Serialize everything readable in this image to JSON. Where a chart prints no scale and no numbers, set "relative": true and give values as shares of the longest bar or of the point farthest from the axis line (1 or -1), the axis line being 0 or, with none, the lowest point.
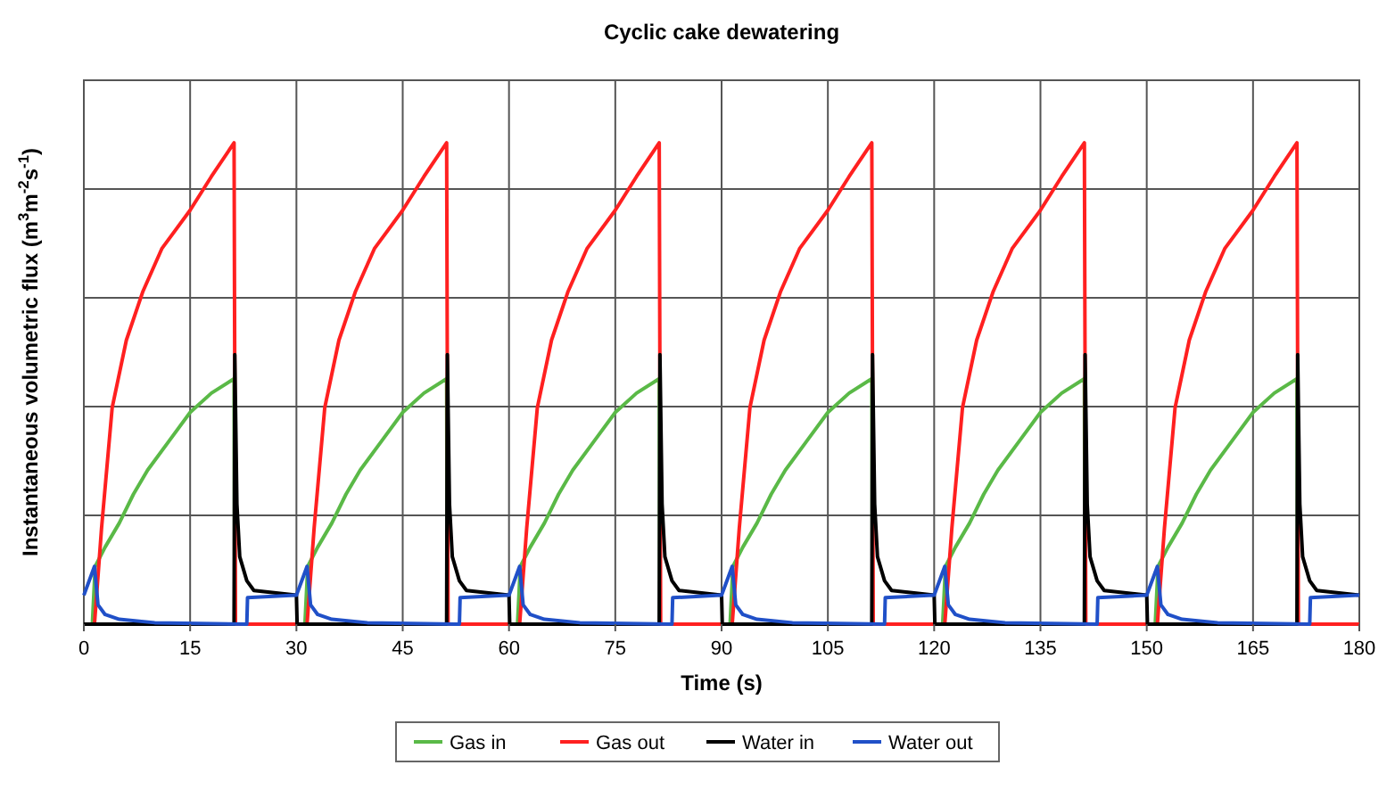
{
  "chart_data": {
    "type": "line",
    "title": "Cyclic cake dewatering",
    "xlabel": "Time (s)",
    "ylabel": "Instantaneous volumetric flux (m$^{3}$m$^{-2}$s$^{-1}$)",
    "relative": true,
    "xlim": [
      0,
      180
    ],
    "xticks": [
      0,
      15,
      30,
      45,
      60,
      75,
      90,
      105,
      120,
      135,
      150,
      165,
      180
    ],
    "grid": true,
    "legend": "bottom",
    "marker": "none",
    "line_style": "solid",
    "series": [
      {
        "name": "Gas in",
        "color": "#5ab947",
        "x": [
          0,
          1.2,
          1.6,
          3,
          5,
          7,
          9,
          12,
          15,
          18,
          21.2,
          21.3,
          31.2,
          31.6,
          33,
          35,
          37,
          39,
          42,
          45,
          48,
          51.2,
          51.3,
          61.2,
          61.6,
          63,
          65,
          67,
          69,
          72,
          75,
          78,
          81.2,
          81.3,
          91.2,
          91.6,
          93,
          95,
          97,
          99,
          102,
          105,
          108,
          111.2,
          111.3,
          121.2,
          121.6,
          123,
          125,
          127,
          129,
          132,
          135,
          138,
          141.2,
          141.3,
          151.2,
          151.6,
          153,
          155,
          157,
          159,
          162,
          165,
          168,
          171.2,
          171.3,
          180
        ],
        "values": [
          0,
          0,
          0.12,
          0.16,
          0.21,
          0.27,
          0.32,
          0.38,
          0.44,
          0.48,
          0.51,
          0,
          0,
          0.12,
          0.16,
          0.21,
          0.27,
          0.32,
          0.38,
          0.44,
          0.48,
          0.51,
          0,
          0,
          0.12,
          0.16,
          0.21,
          0.27,
          0.32,
          0.38,
          0.44,
          0.48,
          0.51,
          0,
          0,
          0.12,
          0.16,
          0.21,
          0.27,
          0.32,
          0.38,
          0.44,
          0.48,
          0.51,
          0,
          0,
          0.12,
          0.16,
          0.21,
          0.27,
          0.32,
          0.38,
          0.44,
          0.48,
          0.51,
          0,
          0,
          0.12,
          0.16,
          0.21,
          0.27,
          0.32,
          0.38,
          0.44,
          0.48,
          0.51,
          0,
          0
        ]
      },
      {
        "name": "Gas out",
        "color": "#ff2020",
        "x": [
          0,
          1.5,
          2.5,
          4,
          6,
          8.3,
          11,
          15,
          18,
          21.2,
          21.4,
          31.5,
          32.5,
          34,
          36,
          38.3,
          41,
          45,
          48,
          51.2,
          51.4,
          61.5,
          62.5,
          64,
          66,
          68.3,
          71,
          75,
          78,
          81.2,
          81.4,
          91.5,
          92.5,
          94,
          96,
          98.3,
          101,
          105,
          108,
          111.2,
          111.4,
          121.5,
          122.5,
          124,
          126,
          128.3,
          131,
          135,
          138,
          141.2,
          141.4,
          151.5,
          152.5,
          154,
          156,
          158.3,
          161,
          165,
          168,
          171.2,
          171.4,
          180
        ],
        "values": [
          0,
          0,
          0.2,
          0.45,
          0.59,
          0.69,
          0.78,
          0.86,
          0.93,
          1,
          0,
          0,
          0.2,
          0.45,
          0.59,
          0.69,
          0.78,
          0.86,
          0.93,
          1,
          0,
          0,
          0.2,
          0.45,
          0.59,
          0.69,
          0.78,
          0.86,
          0.93,
          1,
          0,
          0,
          0.2,
          0.45,
          0.59,
          0.69,
          0.78,
          0.86,
          0.93,
          1,
          0,
          0,
          0.2,
          0.45,
          0.59,
          0.69,
          0.78,
          0.86,
          0.93,
          1,
          0,
          0,
          0.2,
          0.45,
          0.59,
          0.69,
          0.78,
          0.86,
          0.93,
          1,
          0,
          0
        ]
      },
      {
        "name": "Water in",
        "color": "#000000",
        "x": [
          0,
          21.2,
          21.3,
          21.6,
          22,
          23,
          24,
          30,
          30.1,
          51.2,
          51.3,
          51.6,
          52,
          53,
          54,
          60,
          60.1,
          81.2,
          81.3,
          81.6,
          82,
          83,
          84,
          90,
          90.1,
          111.2,
          111.3,
          111.6,
          112,
          113,
          114,
          120,
          120.1,
          141.2,
          141.3,
          141.6,
          142,
          143,
          144,
          150,
          150.1,
          171.2,
          171.3,
          171.6,
          172,
          173,
          174,
          180
        ],
        "values": [
          0,
          0,
          0.56,
          0.25,
          0.14,
          0.09,
          0.07,
          0.06,
          0,
          0,
          0.56,
          0.25,
          0.14,
          0.09,
          0.07,
          0.06,
          0,
          0,
          0.56,
          0.25,
          0.14,
          0.09,
          0.07,
          0.06,
          0,
          0,
          0.56,
          0.25,
          0.14,
          0.09,
          0.07,
          0.06,
          0,
          0,
          0.56,
          0.25,
          0.14,
          0.09,
          0.07,
          0.06,
          0,
          0,
          0.56,
          0.25,
          0.14,
          0.09,
          0.07,
          0.06
        ]
      },
      {
        "name": "Water out",
        "color": "#2050c8",
        "x": [
          0,
          1.5,
          2,
          3,
          5,
          10,
          23,
          23.1,
          29.8,
          30,
          31.5,
          32,
          33,
          35,
          40,
          53,
          53.1,
          59.8,
          60,
          61.5,
          62,
          63,
          65,
          70,
          83,
          83.1,
          89.8,
          90,
          91.5,
          92,
          93,
          95,
          100,
          113,
          113.1,
          119.8,
          120,
          121.5,
          122,
          123,
          125,
          130,
          143,
          143.1,
          149.8,
          150,
          151.5,
          152,
          153,
          155,
          160,
          173,
          173.1,
          179.8,
          180
        ],
        "values": [
          0.06,
          0.12,
          0.04,
          0.02,
          0.01,
          0.003,
          0,
          0.055,
          0.06,
          0.06,
          0.12,
          0.04,
          0.02,
          0.01,
          0.003,
          0,
          0.055,
          0.06,
          0.06,
          0.12,
          0.04,
          0.02,
          0.01,
          0.003,
          0,
          0.055,
          0.06,
          0.06,
          0.12,
          0.04,
          0.02,
          0.01,
          0.003,
          0,
          0.055,
          0.06,
          0.06,
          0.12,
          0.04,
          0.02,
          0.01,
          0.003,
          0,
          0.055,
          0.06,
          0.06,
          0.12,
          0.04,
          0.02,
          0.01,
          0.003,
          0,
          0.055,
          0.06,
          0.06
        ]
      }
    ]
  }
}
